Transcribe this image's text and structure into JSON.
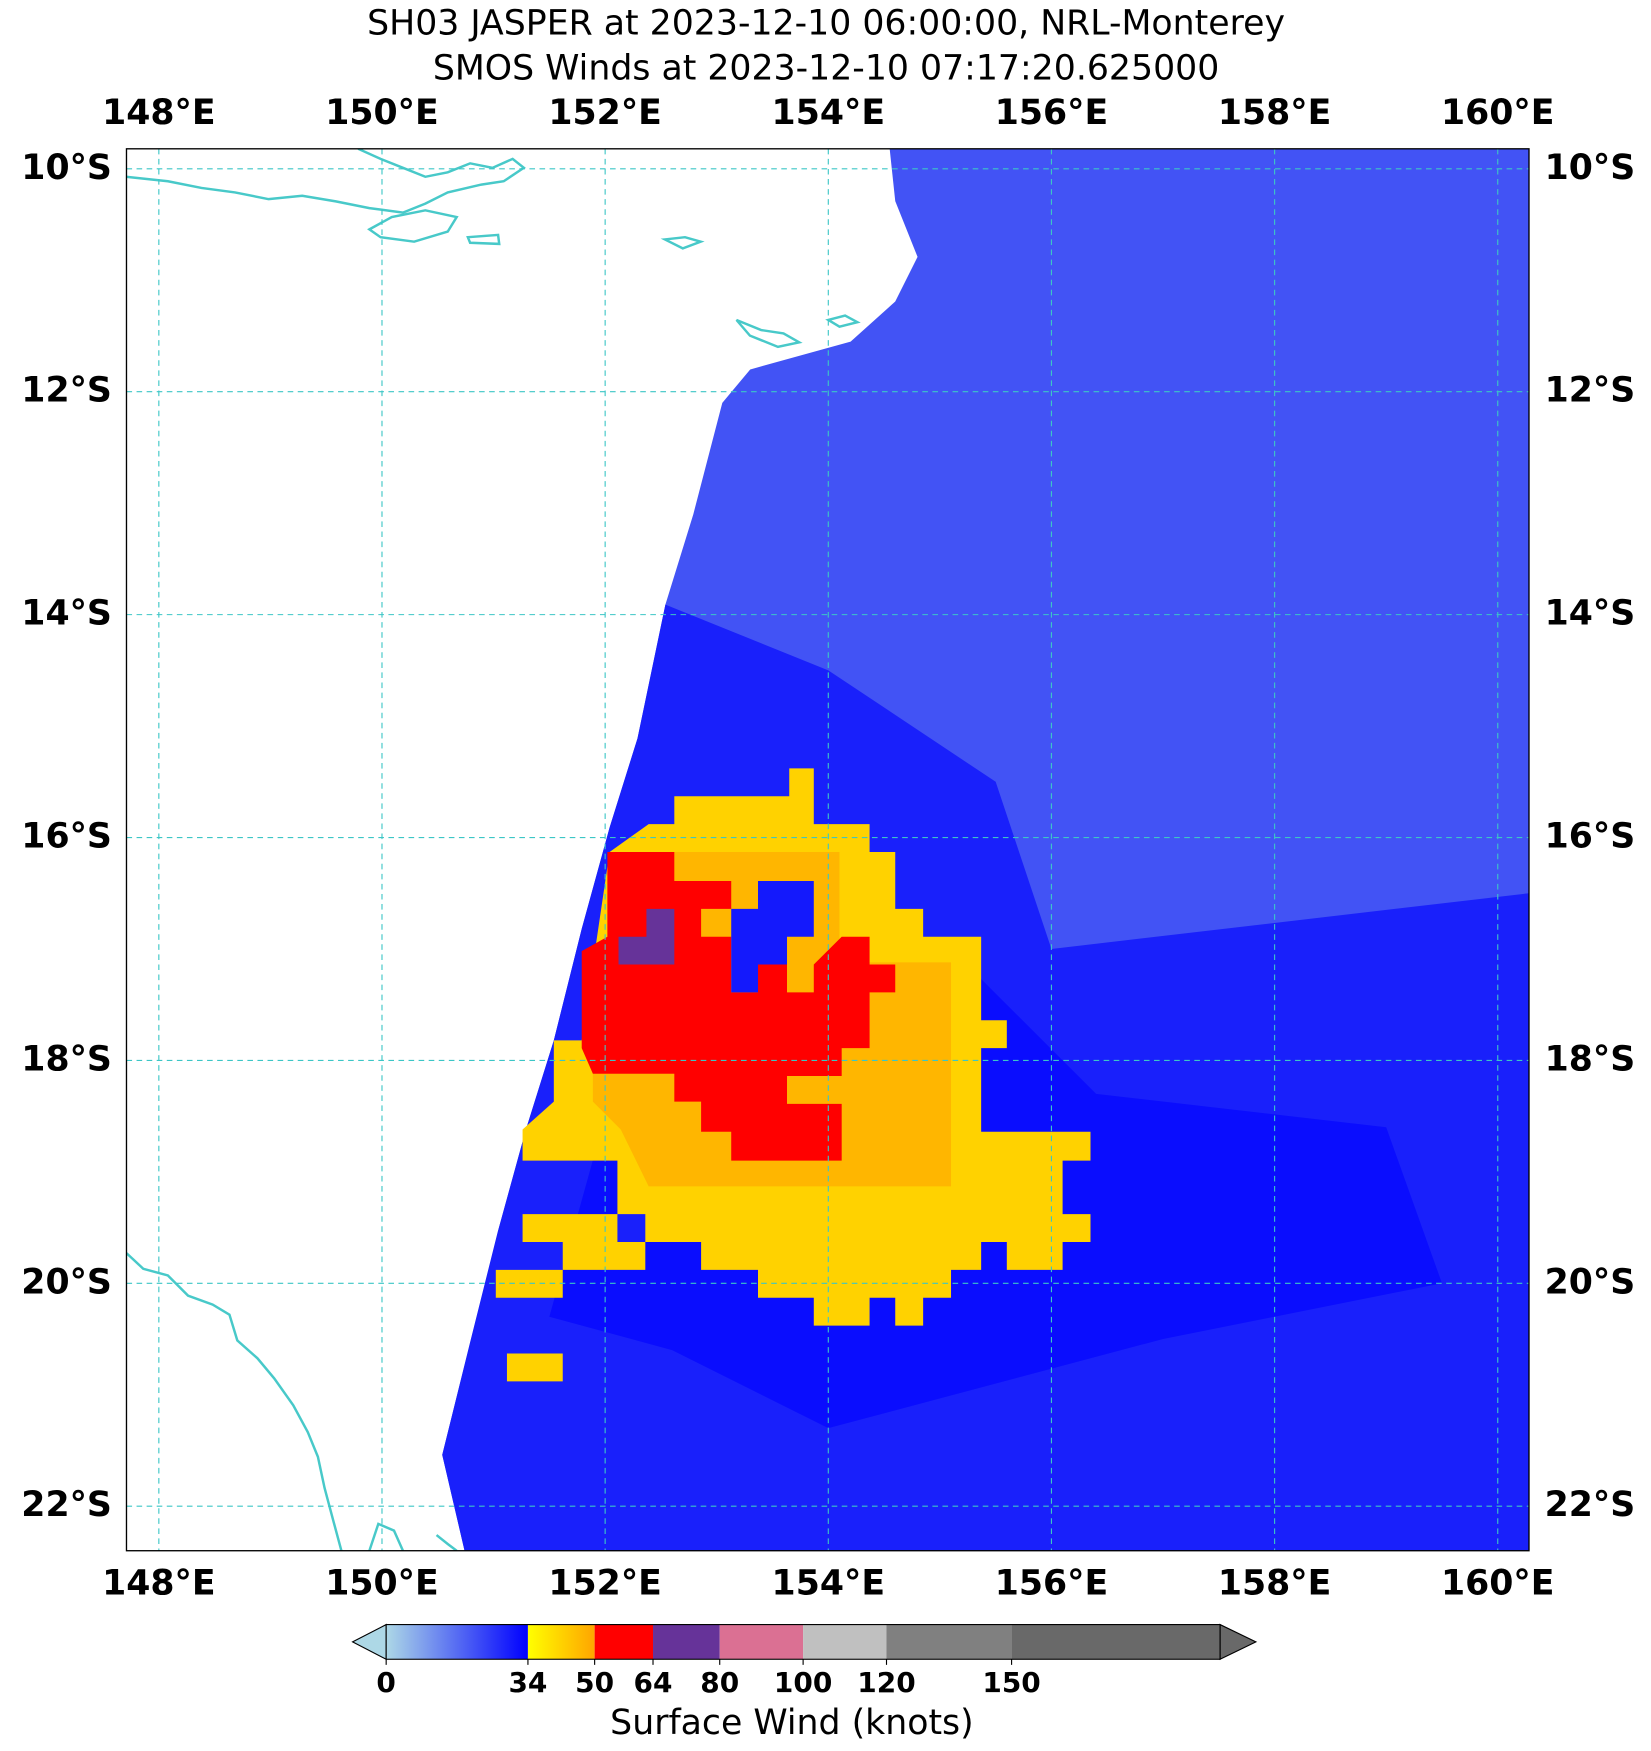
{
  "chart_data": {
    "type": "map",
    "title": "SH03 JASPER at 2023-12-10 06:00:00, NRL-Monterey",
    "subtitle": "SMOS Winds at 2023-12-10 07:17:20.625000",
    "xlim": [
      147.71,
      160.28
    ],
    "ylim": [
      -22.4,
      -9.82
    ],
    "xticks": [
      {
        "value": 148,
        "label": "148°E"
      },
      {
        "value": 150,
        "label": "150°E"
      },
      {
        "value": 152,
        "label": "152°E"
      },
      {
        "value": 154,
        "label": "154°E"
      },
      {
        "value": 156,
        "label": "156°E"
      },
      {
        "value": 158,
        "label": "158°E"
      },
      {
        "value": 160,
        "label": "160°E"
      }
    ],
    "yticks": [
      {
        "value": -10,
        "label": "10°S"
      },
      {
        "value": -12,
        "label": "12°S"
      },
      {
        "value": -14,
        "label": "14°S"
      },
      {
        "value": -16,
        "label": "16°S"
      },
      {
        "value": -18,
        "label": "18°S"
      },
      {
        "value": -20,
        "label": "20°S"
      },
      {
        "value": -22,
        "label": "22°S"
      }
    ],
    "grid": true,
    "colorbar": {
      "label": "Surface Wind (knots)",
      "lim": [
        0,
        200
      ],
      "ticks": [
        0,
        34,
        50,
        64,
        80,
        100,
        120,
        150
      ],
      "segments": [
        {
          "from": 0,
          "to": 34,
          "colors": [
            "#add8e6",
            "#0000ff"
          ]
        },
        {
          "from": 34,
          "to": 50,
          "colors": [
            "#ffff00",
            "#ffa500"
          ]
        },
        {
          "from": 50,
          "to": 64,
          "colors": [
            "#ff0000",
            "#ff0000"
          ]
        },
        {
          "from": 64,
          "to": 80,
          "colors": [
            "#663399",
            "#663399"
          ]
        },
        {
          "from": 80,
          "to": 100,
          "colors": [
            "#db7093",
            "#db7093"
          ]
        },
        {
          "from": 100,
          "to": 120,
          "colors": [
            "#c0c0c0",
            "#c0c0c0"
          ]
        },
        {
          "from": 120,
          "to": 150,
          "colors": [
            "#808080",
            "#808080"
          ]
        },
        {
          "from": 150,
          "to": 200,
          "colors": [
            "#696969",
            "#696969"
          ]
        }
      ]
    },
    "regions": [
      {
        "value": 21,
        "points": [
          [
            154.55,
            -9.82
          ],
          [
            160.28,
            -9.82
          ],
          [
            160.28,
            -22.4
          ],
          [
            150.74,
            -22.4
          ],
          [
            150.54,
            -21.54
          ],
          [
            150.79,
            -20.53
          ],
          [
            151.04,
            -19.53
          ],
          [
            151.29,
            -18.62
          ],
          [
            151.54,
            -17.82
          ],
          [
            151.79,
            -16.82
          ],
          [
            152.04,
            -15.91
          ],
          [
            152.29,
            -15.11
          ],
          [
            152.54,
            -13.91
          ],
          [
            152.79,
            -13.1
          ],
          [
            153.05,
            -12.1
          ],
          [
            153.3,
            -11.8
          ],
          [
            154.2,
            -11.55
          ],
          [
            154.6,
            -11.19
          ],
          [
            154.8,
            -10.79
          ],
          [
            154.6,
            -10.29
          ]
        ]
      },
      {
        "value": 29,
        "points": [
          [
            152.54,
            -13.91
          ],
          [
            154.0,
            -14.5
          ],
          [
            155.5,
            -15.5
          ],
          [
            156.0,
            -17.0
          ],
          [
            160.28,
            -16.5
          ],
          [
            160.28,
            -22.4
          ],
          [
            150.74,
            -22.4
          ],
          [
            150.54,
            -21.54
          ],
          [
            150.79,
            -20.53
          ],
          [
            151.04,
            -19.53
          ],
          [
            151.29,
            -18.62
          ],
          [
            151.54,
            -17.82
          ],
          [
            151.79,
            -16.82
          ],
          [
            152.04,
            -15.91
          ],
          [
            152.29,
            -15.11
          ]
        ]
      },
      {
        "value": 32,
        "points": [
          [
            152.8,
            -16.4
          ],
          [
            155.1,
            -17.0
          ],
          [
            156.4,
            -18.3
          ],
          [
            159.0,
            -18.6
          ],
          [
            159.5,
            -20.0
          ],
          [
            157.0,
            -20.5
          ],
          [
            154.0,
            -21.3
          ],
          [
            152.6,
            -20.6
          ],
          [
            151.5,
            -20.3
          ],
          [
            152.0,
            -18.5
          ]
        ]
      },
      {
        "value": 42,
        "points": [
          [
            152.62,
            -15.63
          ],
          [
            153.65,
            -15.63
          ],
          [
            153.65,
            -15.38
          ],
          [
            153.87,
            -15.38
          ],
          [
            153.87,
            -15.88
          ],
          [
            154.37,
            -15.88
          ],
          [
            154.37,
            -16.13
          ],
          [
            154.6,
            -16.13
          ],
          [
            154.6,
            -16.64
          ],
          [
            154.85,
            -16.64
          ],
          [
            154.85,
            -16.89
          ],
          [
            155.37,
            -16.89
          ],
          [
            155.37,
            -17.64
          ],
          [
            155.6,
            -17.64
          ],
          [
            155.6,
            -17.89
          ],
          [
            155.37,
            -17.89
          ],
          [
            155.37,
            -18.64
          ],
          [
            156.35,
            -18.64
          ],
          [
            156.35,
            -18.9
          ],
          [
            156.1,
            -18.9
          ],
          [
            156.1,
            -19.38
          ],
          [
            156.35,
            -19.38
          ],
          [
            156.35,
            -19.63
          ],
          [
            156.1,
            -19.63
          ],
          [
            156.1,
            -19.88
          ],
          [
            155.6,
            -19.88
          ],
          [
            155.6,
            -19.63
          ],
          [
            155.37,
            -19.63
          ],
          [
            155.37,
            -19.88
          ],
          [
            155.1,
            -19.88
          ],
          [
            155.1,
            -20.13
          ],
          [
            154.85,
            -20.13
          ],
          [
            154.85,
            -20.38
          ],
          [
            154.6,
            -20.38
          ],
          [
            154.6,
            -20.13
          ],
          [
            154.37,
            -20.13
          ],
          [
            154.37,
            -20.38
          ],
          [
            153.87,
            -20.38
          ],
          [
            153.87,
            -20.13
          ],
          [
            153.37,
            -20.13
          ],
          [
            153.37,
            -19.88
          ],
          [
            152.86,
            -19.88
          ],
          [
            152.86,
            -19.63
          ],
          [
            152.36,
            -19.63
          ],
          [
            152.36,
            -19.88
          ],
          [
            151.62,
            -19.88
          ],
          [
            151.62,
            -19.63
          ],
          [
            151.26,
            -19.63
          ],
          [
            151.26,
            -19.38
          ],
          [
            152.11,
            -19.38
          ],
          [
            152.11,
            -18.9
          ],
          [
            151.26,
            -18.9
          ],
          [
            151.26,
            -18.62
          ],
          [
            151.54,
            -18.37
          ],
          [
            151.54,
            -17.82
          ],
          [
            151.79,
            -17.82
          ],
          [
            152.04,
            -16.13
          ],
          [
            152.39,
            -15.88
          ],
          [
            152.62,
            -15.88
          ]
        ]
      },
      {
        "value": 42,
        "points": [
          [
            151.02,
            -19.88
          ],
          [
            151.62,
            -19.88
          ],
          [
            151.62,
            -20.13
          ],
          [
            151.02,
            -20.13
          ]
        ]
      },
      {
        "value": 42,
        "points": [
          [
            151.12,
            -20.63
          ],
          [
            151.62,
            -20.63
          ],
          [
            151.62,
            -20.88
          ],
          [
            151.12,
            -20.88
          ]
        ]
      },
      {
        "value": 29,
        "points": [
          [
            152.11,
            -19.38
          ],
          [
            152.36,
            -19.38
          ],
          [
            152.36,
            -19.63
          ],
          [
            152.11,
            -19.63
          ]
        ]
      },
      {
        "value": 47,
        "points": [
          [
            152.62,
            -16.13
          ],
          [
            154.1,
            -16.13
          ],
          [
            154.1,
            -17.12
          ],
          [
            155.1,
            -17.12
          ],
          [
            155.1,
            -19.13
          ],
          [
            152.39,
            -19.13
          ],
          [
            152.14,
            -18.62
          ],
          [
            151.89,
            -18.37
          ],
          [
            151.89,
            -18.12
          ],
          [
            152.62,
            -18.12
          ]
        ]
      },
      {
        "value": 58,
        "points": [
          [
            152.02,
            -16.13
          ],
          [
            152.62,
            -16.13
          ],
          [
            152.62,
            -16.39
          ],
          [
            153.13,
            -16.39
          ],
          [
            153.13,
            -16.64
          ],
          [
            152.86,
            -16.64
          ],
          [
            152.86,
            -16.89
          ],
          [
            153.13,
            -16.89
          ],
          [
            153.13,
            -17.39
          ],
          [
            153.37,
            -17.39
          ],
          [
            153.37,
            -17.14
          ],
          [
            153.63,
            -17.14
          ],
          [
            153.63,
            -17.39
          ],
          [
            153.87,
            -17.39
          ],
          [
            153.87,
            -17.14
          ],
          [
            154.12,
            -16.89
          ],
          [
            154.37,
            -16.89
          ],
          [
            154.37,
            -17.14
          ],
          [
            154.6,
            -17.14
          ],
          [
            154.6,
            -17.39
          ],
          [
            154.37,
            -17.39
          ],
          [
            154.37,
            -17.89
          ],
          [
            154.12,
            -17.89
          ],
          [
            154.12,
            -18.14
          ],
          [
            153.63,
            -18.14
          ],
          [
            153.63,
            -18.39
          ],
          [
            154.12,
            -18.39
          ],
          [
            154.12,
            -18.9
          ],
          [
            153.13,
            -18.9
          ],
          [
            153.13,
            -18.64
          ],
          [
            152.86,
            -18.64
          ],
          [
            152.86,
            -18.37
          ],
          [
            152.62,
            -18.37
          ],
          [
            152.62,
            -18.12
          ],
          [
            151.89,
            -18.12
          ],
          [
            151.79,
            -17.89
          ],
          [
            151.79,
            -17.02
          ],
          [
            152.02,
            -16.89
          ]
        ]
      },
      {
        "value": 30,
        "points": [
          [
            153.37,
            -16.39
          ],
          [
            153.87,
            -16.39
          ],
          [
            153.87,
            -16.89
          ],
          [
            153.63,
            -16.89
          ],
          [
            153.63,
            -17.14
          ],
          [
            153.37,
            -17.14
          ],
          [
            153.37,
            -17.39
          ],
          [
            153.13,
            -17.39
          ],
          [
            153.13,
            -16.64
          ],
          [
            153.37,
            -16.64
          ]
        ]
      },
      {
        "value": 70,
        "points": [
          [
            152.37,
            -16.64
          ],
          [
            152.62,
            -16.64
          ],
          [
            152.62,
            -17.14
          ],
          [
            152.12,
            -17.14
          ],
          [
            152.12,
            -16.89
          ],
          [
            152.37,
            -16.89
          ]
        ]
      }
    ]
  }
}
